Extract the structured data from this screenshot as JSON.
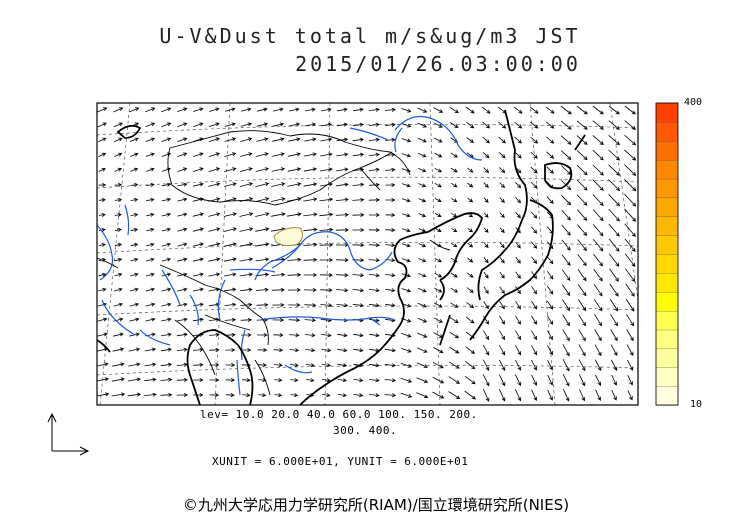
{
  "title": {
    "line1": "U-V&Dust total m/s&ug/m3 JST",
    "line2": "2015/01/26.03:00:00"
  },
  "colorbar": {
    "max_label": "400",
    "min_label": "10",
    "colors": [
      "#ffffe0",
      "#ffffc0",
      "#ffffa0",
      "#ffff80",
      "#ffff50",
      "#ffff00",
      "#ffe800",
      "#ffd800",
      "#ffc800",
      "#ffb800",
      "#ffa800",
      "#ff9800",
      "#ff8800",
      "#ff7000",
      "#ff5800",
      "#ff4000"
    ]
  },
  "legend": {
    "levels_line1": "lev= 10.0 20.0 40.0 60.0 100. 150. 200.",
    "levels_line2": "300. 400."
  },
  "units": {
    "text": "XUNIT = 6.000E+01, YUNIT = 6.000E+01"
  },
  "copyright": "©九州大学応用力学研究所(RIAM)/国立環境研究所(NIES)",
  "colors": {
    "coast": "#000000",
    "river": "#1e5adc",
    "border": "#000000",
    "vector": "#000000",
    "dust_contour": "#e6dc8c"
  }
}
